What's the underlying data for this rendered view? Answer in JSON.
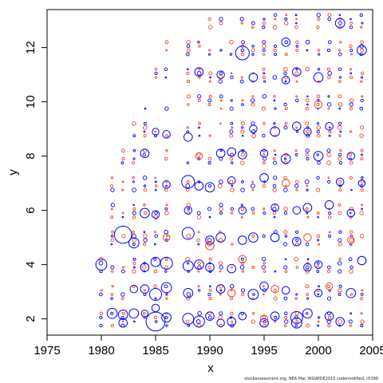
{
  "chart_data": {
    "type": "scatter",
    "title": "",
    "xlabel": "x",
    "ylabel": "y",
    "xlim": [
      1975,
      2005
    ],
    "ylim": [
      1.4,
      13.4
    ],
    "xticks": [
      "1975",
      "1980",
      "1985",
      "1990",
      "1995",
      "2000",
      "2005"
    ],
    "yticks": [
      "2",
      "4",
      "6",
      "8",
      "10",
      "12"
    ],
    "grid": false,
    "legend": "none",
    "series": [
      {
        "color": "#0000ff",
        "marker": "open-circle",
        "points": [
          {
            "x": 1980,
            "y": 4.0,
            "s": 0.9
          },
          {
            "x": 1981,
            "y": 2.2,
            "s": 0.8
          },
          {
            "x": 1982,
            "y": 2.15,
            "s": 0.7
          },
          {
            "x": 1982,
            "y": 1.85,
            "s": 0.6
          },
          {
            "x": 1982,
            "y": 5.1,
            "s": 1.6
          },
          {
            "x": 1983,
            "y": 4.8,
            "s": 0.8
          },
          {
            "x": 1983,
            "y": 2.2,
            "s": 0.7
          },
          {
            "x": 1983,
            "y": 3.1,
            "s": 0.5
          },
          {
            "x": 1984,
            "y": 5.9,
            "s": 0.7
          },
          {
            "x": 1984,
            "y": 3.1,
            "s": 0.6
          },
          {
            "x": 1984,
            "y": 3.9,
            "s": 0.6
          },
          {
            "x": 1984,
            "y": 8.1,
            "s": 0.6
          },
          {
            "x": 1984,
            "y": 2.2,
            "s": 0.4
          },
          {
            "x": 1985,
            "y": 1.9,
            "s": 1.8
          },
          {
            "x": 1985,
            "y": 2.9,
            "s": 1.0
          },
          {
            "x": 1985,
            "y": 4.1,
            "s": 0.7
          },
          {
            "x": 1985,
            "y": 5.85,
            "s": 0.5
          },
          {
            "x": 1985,
            "y": 8.9,
            "s": 0.4
          },
          {
            "x": 1985,
            "y": 2.4,
            "s": 0.5
          },
          {
            "x": 1986,
            "y": 4.05,
            "s": 1.0
          },
          {
            "x": 1986,
            "y": 3.15,
            "s": 0.8
          },
          {
            "x": 1986,
            "y": 2.05,
            "s": 0.7
          },
          {
            "x": 1986,
            "y": 6.95,
            "s": 0.5
          },
          {
            "x": 1986,
            "y": 8.8,
            "s": 0.5
          },
          {
            "x": 1988,
            "y": 7.05,
            "s": 1.1
          },
          {
            "x": 1988,
            "y": 5.15,
            "s": 1.0
          },
          {
            "x": 1988,
            "y": 2.0,
            "s": 0.9
          },
          {
            "x": 1988,
            "y": 3.95,
            "s": 0.8
          },
          {
            "x": 1988,
            "y": 2.95,
            "s": 0.7
          },
          {
            "x": 1988,
            "y": 6.0,
            "s": 0.5
          },
          {
            "x": 1988,
            "y": 8.7,
            "s": 0.6
          },
          {
            "x": 1989,
            "y": 11.1,
            "s": 0.6
          },
          {
            "x": 1989,
            "y": 1.9,
            "s": 0.9
          },
          {
            "x": 1989,
            "y": 4.0,
            "s": 0.7
          },
          {
            "x": 1989,
            "y": 6.9,
            "s": 0.6
          },
          {
            "x": 1990,
            "y": 6.85,
            "s": 0.7
          },
          {
            "x": 1990,
            "y": 3.9,
            "s": 0.6
          },
          {
            "x": 1990,
            "y": 2.1,
            "s": 0.6
          },
          {
            "x": 1990,
            "y": 4.9,
            "s": 0.6
          },
          {
            "x": 1991,
            "y": 8.1,
            "s": 0.6
          },
          {
            "x": 1991,
            "y": 5.0,
            "s": 0.7
          },
          {
            "x": 1991,
            "y": 3.1,
            "s": 0.6
          },
          {
            "x": 1991,
            "y": 1.85,
            "s": 0.5
          },
          {
            "x": 1991,
            "y": 11.0,
            "s": 0.5
          },
          {
            "x": 1992,
            "y": 8.15,
            "s": 0.6
          },
          {
            "x": 1992,
            "y": 3.85,
            "s": 0.6
          },
          {
            "x": 1992,
            "y": 1.9,
            "s": 0.6
          },
          {
            "x": 1992,
            "y": 7.1,
            "s": 0.5
          },
          {
            "x": 1993,
            "y": 11.8,
            "s": 1.2
          },
          {
            "x": 1993,
            "y": 4.9,
            "s": 0.6
          },
          {
            "x": 1993,
            "y": 8.05,
            "s": 0.6
          },
          {
            "x": 1993,
            "y": 2.1,
            "s": 0.5
          },
          {
            "x": 1993,
            "y": 6.0,
            "s": 0.5
          },
          {
            "x": 1994,
            "y": 2.9,
            "s": 0.8
          },
          {
            "x": 1994,
            "y": 10.9,
            "s": 0.6
          },
          {
            "x": 1994,
            "y": 5.0,
            "s": 0.7
          },
          {
            "x": 1994,
            "y": 9.0,
            "s": 0.5
          },
          {
            "x": 1995,
            "y": 1.85,
            "s": 0.6
          },
          {
            "x": 1995,
            "y": 7.2,
            "s": 0.6
          },
          {
            "x": 1995,
            "y": 3.2,
            "s": 0.6
          },
          {
            "x": 1995,
            "y": 8.1,
            "s": 0.5
          },
          {
            "x": 1996,
            "y": 8.9,
            "s": 0.7
          },
          {
            "x": 1996,
            "y": 5.0,
            "s": 0.6
          },
          {
            "x": 1996,
            "y": 2.1,
            "s": 0.6
          },
          {
            "x": 1996,
            "y": 6.1,
            "s": 0.5
          },
          {
            "x": 1997,
            "y": 12.2,
            "s": 0.6
          },
          {
            "x": 1997,
            "y": 7.9,
            "s": 0.7
          },
          {
            "x": 1997,
            "y": 10.8,
            "s": 0.5
          },
          {
            "x": 1997,
            "y": 3.05,
            "s": 0.5
          },
          {
            "x": 1998,
            "y": 2.05,
            "s": 1.0
          },
          {
            "x": 1998,
            "y": 1.85,
            "s": 0.8
          },
          {
            "x": 1998,
            "y": 9.1,
            "s": 0.6
          },
          {
            "x": 1998,
            "y": 11.1,
            "s": 0.6
          },
          {
            "x": 1998,
            "y": 4.85,
            "s": 0.6
          },
          {
            "x": 1998,
            "y": 6.0,
            "s": 0.5
          },
          {
            "x": 1999,
            "y": 2.2,
            "s": 0.7
          },
          {
            "x": 1999,
            "y": 6.1,
            "s": 0.6
          },
          {
            "x": 1999,
            "y": 3.9,
            "s": 0.5
          },
          {
            "x": 1999,
            "y": 8.9,
            "s": 0.5
          },
          {
            "x": 2000,
            "y": 10.9,
            "s": 0.7
          },
          {
            "x": 2000,
            "y": 8.0,
            "s": 0.7
          },
          {
            "x": 2000,
            "y": 4.0,
            "s": 0.5
          },
          {
            "x": 2000,
            "y": 2.95,
            "s": 0.5
          },
          {
            "x": 2001,
            "y": 6.2,
            "s": 0.6
          },
          {
            "x": 2001,
            "y": 2.1,
            "s": 0.6
          },
          {
            "x": 2001,
            "y": 9.1,
            "s": 0.5
          },
          {
            "x": 2002,
            "y": 12.9,
            "s": 0.7
          },
          {
            "x": 2002,
            "y": 1.9,
            "s": 0.6
          },
          {
            "x": 2002,
            "y": 7.05,
            "s": 0.5
          },
          {
            "x": 2003,
            "y": 2.95,
            "s": 0.7
          },
          {
            "x": 2003,
            "y": 5.9,
            "s": 0.5
          },
          {
            "x": 2003,
            "y": 8.0,
            "s": 0.5
          },
          {
            "x": 2004,
            "y": 11.9,
            "s": 0.7
          },
          {
            "x": 2004,
            "y": 4.15,
            "s": 0.6
          },
          {
            "x": 2004,
            "y": 7.0,
            "s": 0.4
          }
        ]
      },
      {
        "color": "#ee4422",
        "marker": "open-circle",
        "points": [
          {
            "x": 1990,
            "y": 4.7,
            "s": 0.6
          },
          {
            "x": 1992,
            "y": 2.95,
            "s": 0.5
          },
          {
            "x": 1993,
            "y": 4.2,
            "s": 0.5
          },
          {
            "x": 1995,
            "y": 2.0,
            "s": 0.5
          },
          {
            "x": 1996,
            "y": 3.1,
            "s": 0.5
          },
          {
            "x": 1997,
            "y": 7.0,
            "s": 0.5
          },
          {
            "x": 1999,
            "y": 5.0,
            "s": 0.5
          },
          {
            "x": 2000,
            "y": 9.9,
            "s": 0.5
          },
          {
            "x": 2001,
            "y": 3.2,
            "s": 0.4
          },
          {
            "x": 2003,
            "y": 4.9,
            "s": 0.4
          },
          {
            "x": 1986,
            "y": 5.0,
            "s": 0.4
          },
          {
            "x": 1989,
            "y": 8.0,
            "s": 0.4
          }
        ]
      }
    ],
    "background_marks": {
      "years": [
        1980,
        2004
      ],
      "y_levels": [
        2,
        3,
        4,
        5,
        6,
        7,
        8,
        9,
        10,
        11,
        12,
        13
      ],
      "year_min_level": {
        "1980": 4,
        "1981": 7,
        "1982": 8,
        "1983": 9,
        "1984": 10,
        "1985": 11,
        "1986": 12,
        "1987": 0,
        "1988": 12,
        "1989": 12,
        "1990": 13
      },
      "colors": [
        "#0000ff",
        "#ee4422"
      ]
    }
  },
  "footnote": "stockassessment.org, NEA Mac WGWIDE2015 codemodified, r5399"
}
